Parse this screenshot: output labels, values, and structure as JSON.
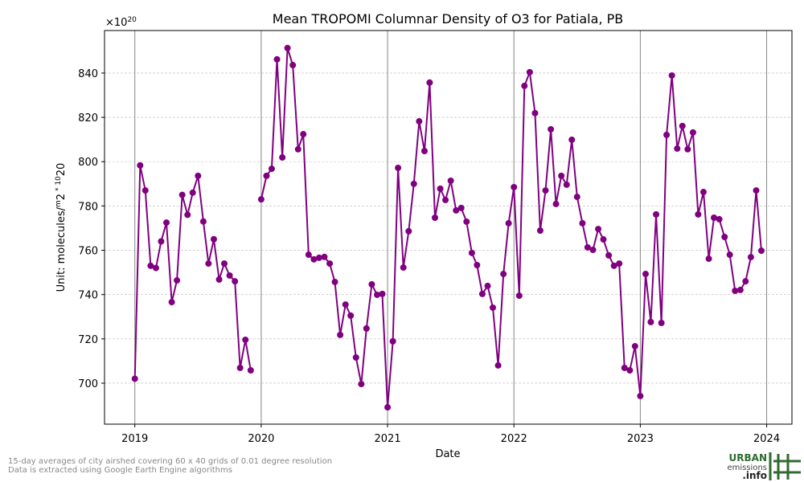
{
  "chart_data": {
    "type": "line",
    "title": "Mean TROPOMI Columnar Density of O3 for Patiala, PB",
    "xlabel": "Date",
    "ylabel_parts": [
      "Unit: molecules/",
      "m",
      "2",
      " * 10",
      "20"
    ],
    "offset_parts": [
      "×10",
      "20"
    ],
    "xlim": [
      2018.76,
      2024.2
    ],
    "ylim": [
      681.5,
      859.2
    ],
    "xticks": [
      2019,
      2020,
      2021,
      2022,
      2023,
      2024
    ],
    "yticks": [
      700,
      720,
      740,
      760,
      780,
      800,
      820,
      840
    ],
    "grid": true,
    "year_lines": true,
    "x": [
      2019.0,
      2019.042,
      2019.083,
      2019.125,
      2019.167,
      2019.208,
      2019.25,
      2019.292,
      2019.333,
      2019.375,
      2019.417,
      2019.458,
      2019.5,
      2019.542,
      2019.583,
      2019.625,
      2019.667,
      2019.708,
      2019.75,
      2019.792,
      2019.833,
      2019.875,
      2019.917,
      2019.958,
      2020.0,
      2020.042,
      2020.083,
      2020.125,
      2020.167,
      2020.208,
      2020.25,
      2020.292,
      2020.333,
      2020.375,
      2020.417,
      2020.458,
      2020.5,
      2020.542,
      2020.583,
      2020.625,
      2020.667,
      2020.708,
      2020.75,
      2020.792,
      2020.833,
      2020.875,
      2020.917,
      2020.958,
      2021.0,
      2021.042,
      2021.083,
      2021.125,
      2021.167,
      2021.208,
      2021.25,
      2021.292,
      2021.333,
      2021.375,
      2021.417,
      2021.458,
      2021.5,
      2021.542,
      2021.583,
      2021.625,
      2021.667,
      2021.708,
      2021.75,
      2021.792,
      2021.833,
      2021.875,
      2021.917,
      2021.958,
      2022.0,
      2022.042,
      2022.083,
      2022.125,
      2022.167,
      2022.208,
      2022.25,
      2022.292,
      2022.333,
      2022.375,
      2022.417,
      2022.458,
      2022.5,
      2022.542,
      2022.583,
      2022.625,
      2022.667,
      2022.708,
      2022.75,
      2022.792,
      2022.833,
      2022.875,
      2022.917,
      2022.958,
      2023.0,
      2023.042,
      2023.083,
      2023.125,
      2023.167,
      2023.208,
      2023.25,
      2023.292,
      2023.333,
      2023.375,
      2023.417,
      2023.458,
      2023.5,
      2023.542,
      2023.583,
      2023.625,
      2023.667,
      2023.708,
      2023.75,
      2023.792,
      2023.833,
      2023.875,
      2023.917,
      2023.958
    ],
    "series": [
      {
        "color": "#800080",
        "values": [
          702,
          798.3,
          787,
          753,
          752,
          764,
          772.5,
          736.6,
          746.4,
          785,
          776,
          786,
          793.6,
          773,
          754,
          765,
          746.8,
          754,
          748.6,
          746,
          706.9,
          719.6,
          705.8,
          null,
          783,
          793.6,
          796.8,
          846.2,
          801.9,
          851.3,
          843.6,
          805.6,
          812.4,
          758,
          755.9,
          756.6,
          757,
          754,
          745.7,
          721.8,
          735.5,
          730.5,
          711.6,
          699.6,
          724.7,
          744.6,
          739.9,
          740.3,
          689.1,
          718.9,
          797.2,
          752.2,
          768.6,
          790,
          818.2,
          804.8,
          835.7,
          774.7,
          787.8,
          782.7,
          791.4,
          778,
          779.1,
          772.9,
          758.8,
          753.3,
          740.3,
          743.9,
          734.1,
          708,
          749.3,
          772.2,
          788.5,
          739.5,
          834.2,
          840.4,
          821.9,
          768.9,
          787,
          814.6,
          780.9,
          793.6,
          789.6,
          809.9,
          784.1,
          772.2,
          761.3,
          760.2,
          769.6,
          764.9,
          757.7,
          753,
          754,
          706.9,
          705.8,
          716.7,
          694.2,
          749.3,
          727.6,
          776.2,
          727.2,
          812.1,
          838.9,
          805.9,
          816.1,
          805.6,
          813.2,
          776.2,
          786.3,
          756.2,
          774.7,
          774,
          766,
          758,
          741.7,
          742.1,
          746,
          756.9,
          787,
          759.8
        ]
      }
    ]
  },
  "footnote": [
    "15-day averages of city airshed covering 60 x 40 grids of 0.01 degree resolution",
    "Data is extracted using Google Earth Engine algorithms"
  ],
  "logo": {
    "line1": "URBAN",
    "line2": "emissions",
    "line3": ".info"
  }
}
